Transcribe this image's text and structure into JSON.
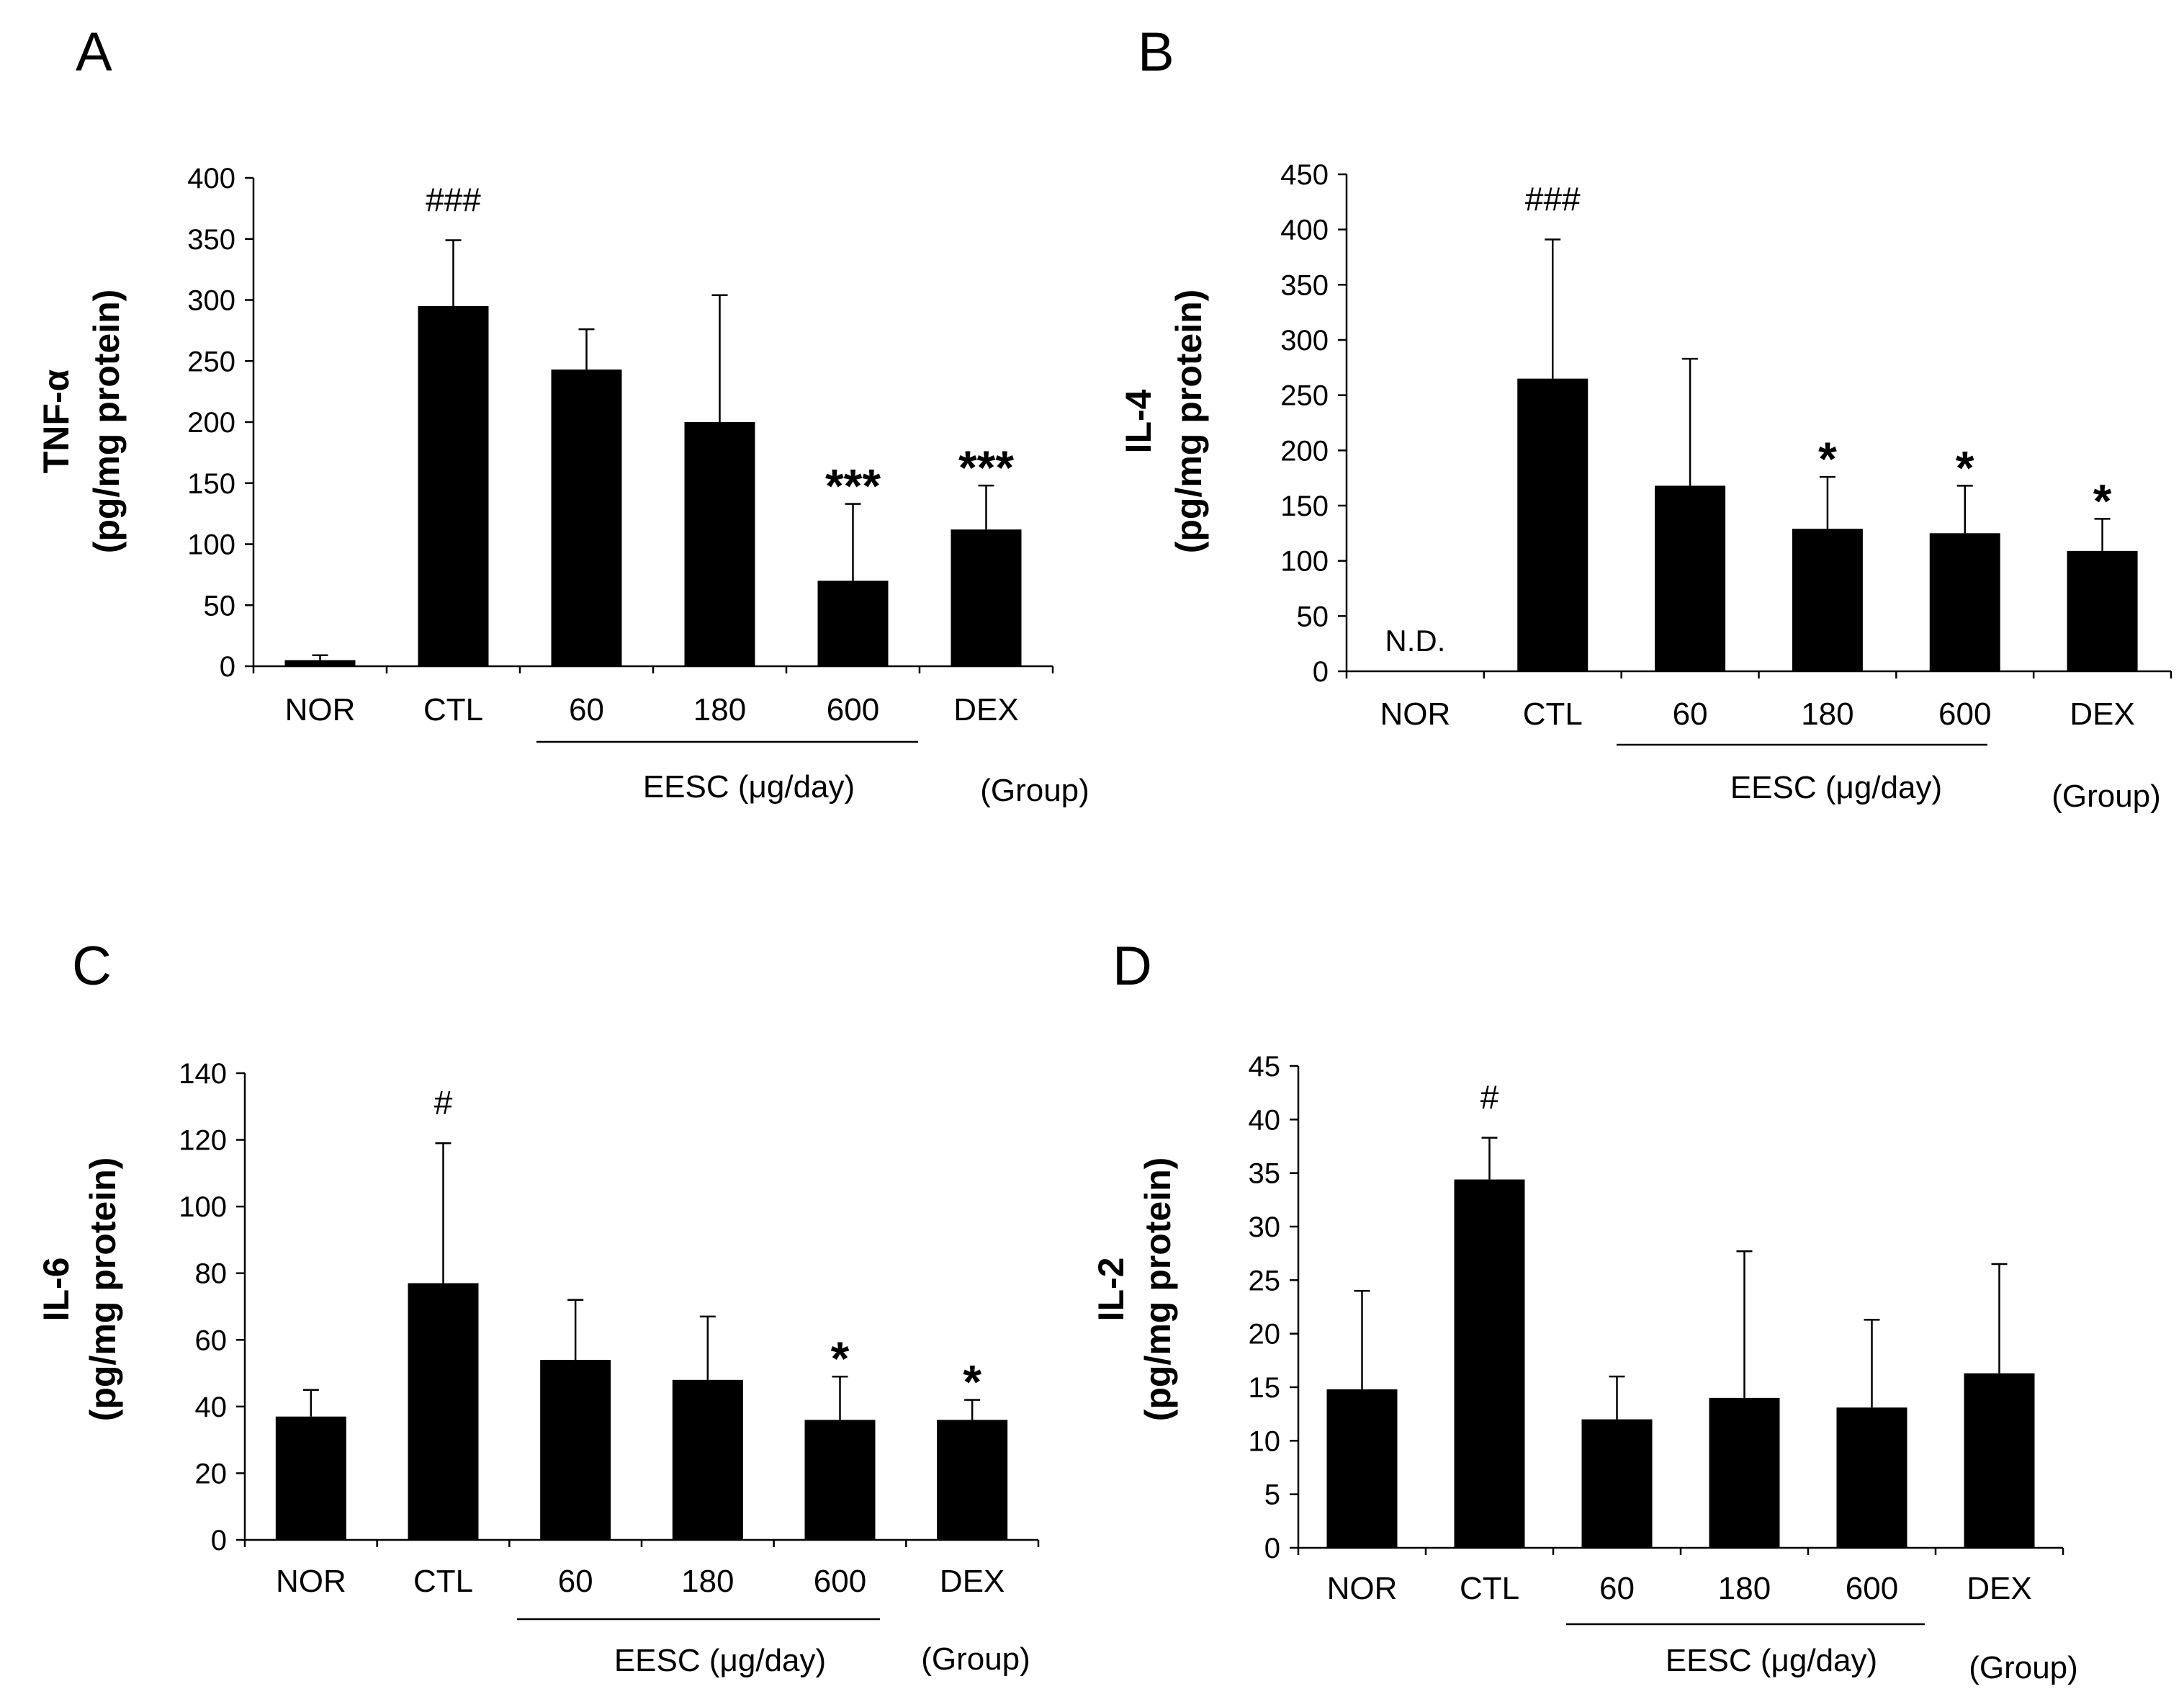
{
  "chart_data": [
    {
      "panel": "A",
      "type": "bar",
      "categories": [
        "NOR",
        "CTL",
        "60",
        "180",
        "600",
        "DEX"
      ],
      "values": [
        5,
        295,
        243,
        200,
        70,
        112
      ],
      "errors": [
        4,
        54,
        33,
        104,
        63,
        36
      ],
      "significance": [
        "",
        "###",
        "",
        "",
        "***",
        "***"
      ],
      "not_detected_label": "",
      "ylabel_line1": "TNF-α",
      "ylabel_line2": "(pg/mg protein)",
      "ylim": [
        0,
        400
      ],
      "yticks": [
        "0",
        "50",
        "100",
        "150",
        "200",
        "250",
        "300",
        "350",
        "400"
      ],
      "group_label": "EESC (μg/day)",
      "group_suffix": "(Group)"
    },
    {
      "panel": "B",
      "type": "bar",
      "categories": [
        "NOR",
        "CTL",
        "60",
        "180",
        "600",
        "DEX"
      ],
      "values": [
        0,
        265,
        168,
        129,
        125,
        109
      ],
      "errors": [
        0,
        126,
        115,
        47,
        43,
        29
      ],
      "significance": [
        "",
        "###",
        "",
        "*",
        "*",
        "*"
      ],
      "not_detected_label": "N.D.",
      "ylabel_line1": "IL-4",
      "ylabel_line2": "(pg/mg protein)",
      "ylim": [
        0,
        450
      ],
      "yticks": [
        "0",
        "50",
        "100",
        "150",
        "200",
        "250",
        "300",
        "350",
        "400",
        "450"
      ],
      "group_label": "EESC (μg/day)",
      "group_suffix": "(Group)"
    },
    {
      "panel": "C",
      "type": "bar",
      "categories": [
        "NOR",
        "CTL",
        "60",
        "180",
        "600",
        "DEX"
      ],
      "values": [
        37,
        77,
        54,
        48,
        36,
        36
      ],
      "errors": [
        8,
        42,
        18,
        19,
        13,
        6
      ],
      "significance": [
        "",
        "#",
        "",
        "",
        "*",
        "*"
      ],
      "not_detected_label": "",
      "ylabel_line1": "IL-6",
      "ylabel_line2": "(pg/mg protein)",
      "ylim": [
        0,
        140
      ],
      "yticks": [
        "0",
        "20",
        "40",
        "60",
        "80",
        "100",
        "120",
        "140"
      ],
      "group_label": "EESC (μg/day)",
      "group_suffix": "(Group)"
    },
    {
      "panel": "D",
      "type": "bar",
      "categories": [
        "NOR",
        "CTL",
        "60",
        "180",
        "600",
        "DEX"
      ],
      "values": [
        14.8,
        34.4,
        12.0,
        14.0,
        13.1,
        16.3
      ],
      "errors": [
        9.2,
        3.9,
        4.0,
        13.7,
        8.2,
        10.2
      ],
      "significance": [
        "",
        "#",
        "",
        "",
        "",
        ""
      ],
      "not_detected_label": "",
      "ylabel_line1": "IL-2",
      "ylabel_line2": "(pg/mg protein)",
      "ylim": [
        0,
        45
      ],
      "yticks": [
        "0",
        "5",
        "10",
        "15",
        "20",
        "25",
        "30",
        "35",
        "40",
        "45"
      ],
      "group_label": "EESC (μg/day)",
      "group_suffix": "(Group)"
    }
  ]
}
